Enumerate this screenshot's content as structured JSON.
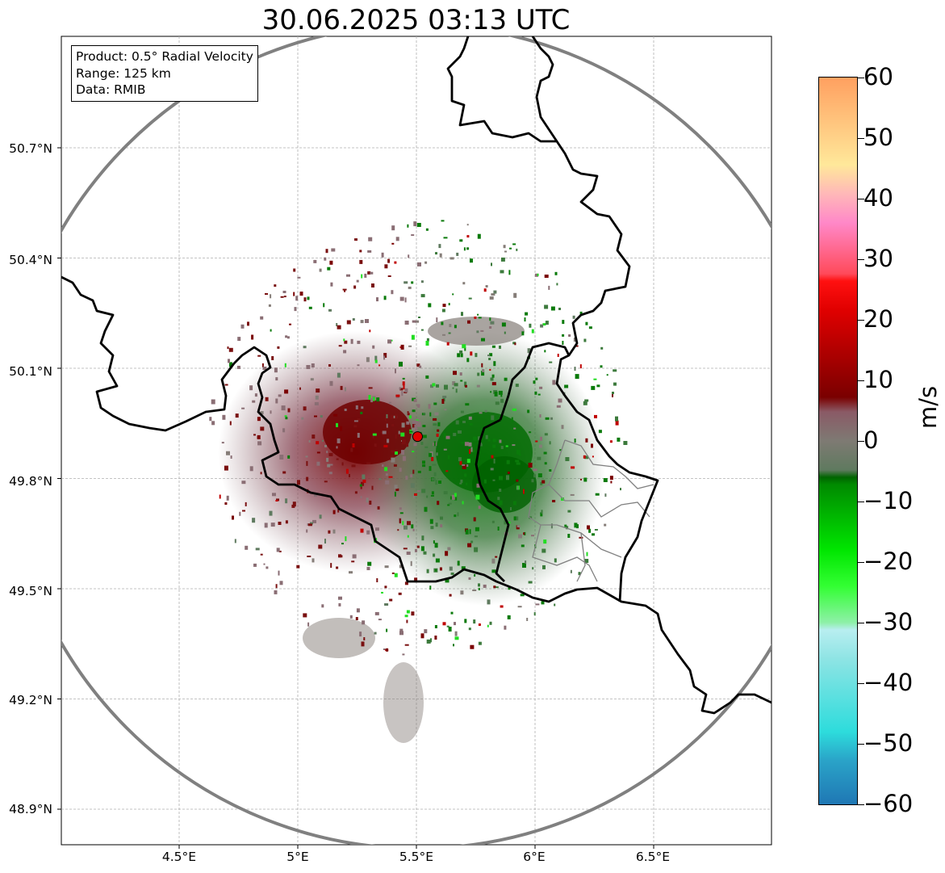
{
  "title": "30.06.2025 03:13 UTC",
  "info": {
    "product": "Product: 0.5° Radial Velocity",
    "range": "Range: 125 km",
    "source": "Data: RMIB"
  },
  "axes": {
    "lat_ticks": [
      "50.7°N",
      "50.4°N",
      "50.1°N",
      "49.8°N",
      "49.5°N",
      "49.2°N",
      "48.9°N"
    ],
    "lon_ticks": [
      "4.5°E",
      "5°E",
      "5.5°E",
      "6°E",
      "6.5°E"
    ]
  },
  "colorbar": {
    "unit": "m/s",
    "ticks": [
      "60",
      "50",
      "40",
      "30",
      "20",
      "10",
      "0",
      "−10",
      "−20",
      "−30",
      "−40",
      "−50",
      "−60"
    ],
    "range": [
      -60,
      60
    ]
  },
  "radar": {
    "lon": 5.505,
    "lat": 49.914,
    "range_km": 125
  },
  "colors": {
    "range_ring": "#808080",
    "border": "#000000",
    "admin_border": "#808080",
    "receding": "#7a0000",
    "approaching": "#0a7a0a",
    "zero": "#7e7a73"
  }
}
